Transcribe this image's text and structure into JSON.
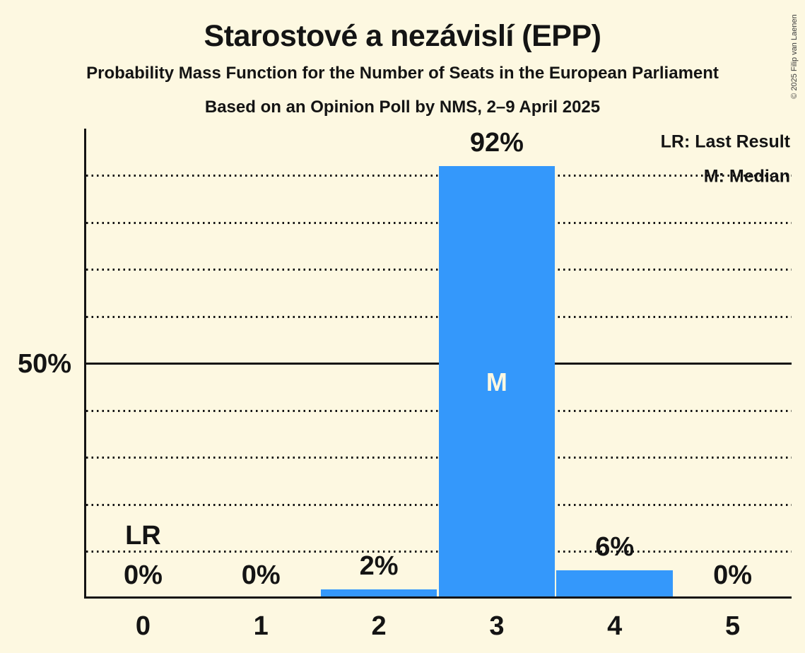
{
  "header": {
    "title": "Starostové a nezávislí (EPP)",
    "subtitle1": "Probability Mass Function for the Number of Seats in the European Parliament",
    "subtitle2": "Based on an Opinion Poll by NMS, 2–9 April 2025"
  },
  "copyright": "© 2025 Filip van Laenen",
  "legend": {
    "last_result": "LR: Last Result",
    "median": "M: Median"
  },
  "chart_data": {
    "type": "bar",
    "title": "Starostové a nezávislí (EPP)",
    "categories": [
      "0",
      "1",
      "2",
      "3",
      "4",
      "5"
    ],
    "values": [
      0,
      0,
      2,
      92,
      6,
      0
    ],
    "value_labels": [
      "0%",
      "0%",
      "2%",
      "92%",
      "6%",
      "0%"
    ],
    "ylim": [
      0,
      100
    ],
    "y_tick_values": [
      50
    ],
    "y_tick_labels": [
      "50%"
    ],
    "gridlines_pct": [
      10,
      20,
      30,
      40,
      50,
      60,
      70,
      80,
      90
    ],
    "solid_gridline_pct": 50,
    "grid_style": "dotted-horizontal",
    "legend_position": "top-right",
    "median_category": "3",
    "median_marker": "M",
    "last_result_category": "0",
    "last_result_marker": "LR",
    "colors": {
      "bar": "#3498fb",
      "background": "#fdf8e1",
      "text": "#141414",
      "median_label": "#fdf8e1"
    }
  }
}
